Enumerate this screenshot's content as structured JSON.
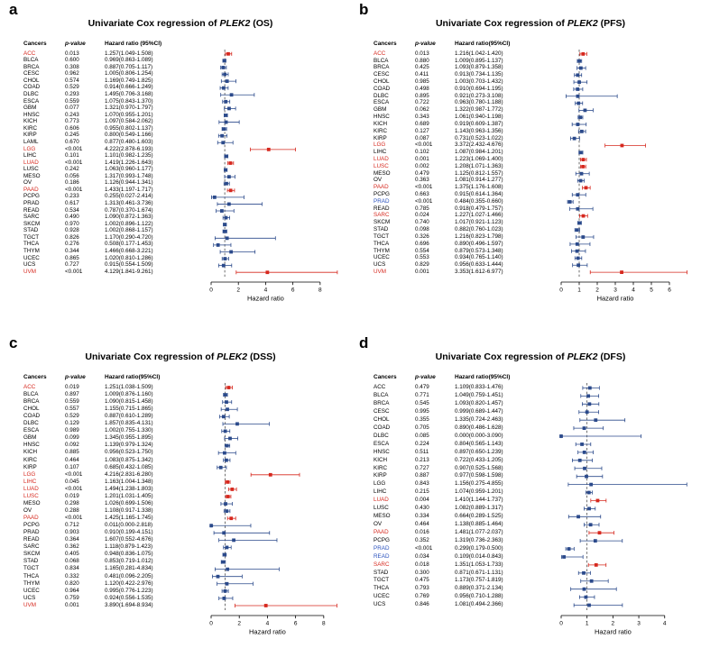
{
  "labels": {
    "cancers_header": "Cancers",
    "pvalue_header": "p-value",
    "axis_label": "Hazard ratio"
  },
  "colors": {
    "red": "#d6281e",
    "navy": "#2b4a8b",
    "blue": "#2a52be",
    "reference_line": "#333333",
    "axis": "#000000",
    "background": "#ffffff"
  },
  "chart_data": [
    {
      "type": "forest",
      "panel": "a",
      "title": {
        "prefix": "Univariate Cox regression of ",
        "gene": "PLEK2",
        "suffix": " (OS)"
      },
      "ci_header": "Hazard ratio (95%CI)",
      "xlabel": "Hazard ratio",
      "xlim": [
        0,
        9.4
      ],
      "xticks": [
        0,
        2,
        4,
        6,
        8
      ],
      "rows": [
        {
          "cancer": "ACC",
          "p": "0.013",
          "ci": "1.257(1.049-1.508)",
          "label_color": "red"
        },
        {
          "cancer": "BLCA",
          "p": "0.600",
          "ci": "0.969(0.863-1.089)"
        },
        {
          "cancer": "BRCA",
          "p": "0.308",
          "ci": "0.887(0.705-1.117)"
        },
        {
          "cancer": "CESC",
          "p": "0.962",
          "ci": "1.005(0.806-1.254)"
        },
        {
          "cancer": "CHOL",
          "p": "0.574",
          "ci": "1.169(0.749-1.825)"
        },
        {
          "cancer": "COAD",
          "p": "0.529",
          "ci": "0.914(0.666-1.249)"
        },
        {
          "cancer": "DLBC",
          "p": "0.293",
          "ci": "1.495(0.706-3.168)"
        },
        {
          "cancer": "ESCA",
          "p": "0.559",
          "ci": "1.075(0.843-1.370)"
        },
        {
          "cancer": "GBM",
          "p": "0.077",
          "ci": "1.321(0.970-1.797)"
        },
        {
          "cancer": "HNSC",
          "p": "0.243",
          "ci": "1.070(0.955-1.201)"
        },
        {
          "cancer": "KICH",
          "p": "0.773",
          "ci": "1.097(0.584-2.062)"
        },
        {
          "cancer": "KIRC",
          "p": "0.606",
          "ci": "0.955(0.802-1.137)"
        },
        {
          "cancer": "KIRP",
          "p": "0.245",
          "ci": "0.800(0.549-1.166)"
        },
        {
          "cancer": "LAML",
          "p": "0.670",
          "ci": "0.877(0.480-1.603)"
        },
        {
          "cancer": "LGG",
          "p": "<0.001",
          "ci": "4.222(2.878-6.193)",
          "label_color": "red"
        },
        {
          "cancer": "LIHC",
          "p": "0.101",
          "ci": "1.101(0.982-1.235)"
        },
        {
          "cancer": "LUAD",
          "p": "<0.001",
          "ci": "1.419(1.226-1.643)",
          "label_color": "red"
        },
        {
          "cancer": "LUSC",
          "p": "0.242",
          "ci": "1.063(0.960-1.177)"
        },
        {
          "cancer": "MESO",
          "p": "0.056",
          "ci": "1.317(0.993-1.748)"
        },
        {
          "cancer": "OV",
          "p": "0.186",
          "ci": "1.126(0.944-1.341)"
        },
        {
          "cancer": "PAAD",
          "p": "<0.001",
          "ci": "1.433(1.197-1.717)",
          "label_color": "red"
        },
        {
          "cancer": "PCPG",
          "p": "0.233",
          "ci": "0.255(0.027-2.414)"
        },
        {
          "cancer": "PRAD",
          "p": "0.617",
          "ci": "1.313(0.461-3.736)"
        },
        {
          "cancer": "READ",
          "p": "0.534",
          "ci": "0.787(0.370-1.674)"
        },
        {
          "cancer": "SARC",
          "p": "0.490",
          "ci": "1.090(0.872-1.363)"
        },
        {
          "cancer": "SKCM",
          "p": "0.970",
          "ci": "1.002(0.896-1.122)"
        },
        {
          "cancer": "STAD",
          "p": "0.928",
          "ci": "1.002(0.868-1.157)"
        },
        {
          "cancer": "TGCT",
          "p": "0.826",
          "ci": "1.170(0.290-4.720)"
        },
        {
          "cancer": "THCA",
          "p": "0.276",
          "ci": "0.508(0.177-1.453)"
        },
        {
          "cancer": "THYM",
          "p": "0.344",
          "ci": "1.466(0.668-3.221)"
        },
        {
          "cancer": "UCEC",
          "p": "0.865",
          "ci": "1.020(0.810-1.286)"
        },
        {
          "cancer": "UCS",
          "p": "0.727",
          "ci": "0.915(0.554-1.509)"
        },
        {
          "cancer": "UVM",
          "p": "<0.001",
          "ci": "4.129(1.841-9.261)",
          "label_color": "red"
        }
      ]
    },
    {
      "type": "forest",
      "panel": "b",
      "title": {
        "prefix": "Univariate Cox regression of ",
        "gene": "PLEK2",
        "suffix": " (PFS)"
      },
      "ci_header": "Hazard ratio(95%CI)",
      "xlabel": "Hazard ratio",
      "xlim": [
        0,
        7.1
      ],
      "xticks": [
        0,
        1,
        2,
        3,
        4,
        5,
        6
      ],
      "rows": [
        {
          "cancer": "ACC",
          "p": "0.013",
          "ci": "1.216(1.042-1.420)",
          "label_color": "red"
        },
        {
          "cancer": "BLCA",
          "p": "0.880",
          "ci": "1.009(0.895-1.137)"
        },
        {
          "cancer": "BRCA",
          "p": "0.425",
          "ci": "1.093(0.879-1.358)"
        },
        {
          "cancer": "CESC",
          "p": "0.411",
          "ci": "0.913(0.734-1.135)"
        },
        {
          "cancer": "CHOL",
          "p": "0.985",
          "ci": "1.003(0.703-1.432)"
        },
        {
          "cancer": "COAD",
          "p": "0.498",
          "ci": "0.910(0.694-1.195)"
        },
        {
          "cancer": "DLBC",
          "p": "0.895",
          "ci": "0.921(0.273-3.108)"
        },
        {
          "cancer": "ESCA",
          "p": "0.722",
          "ci": "0.963(0.780-1.188)"
        },
        {
          "cancer": "GBM",
          "p": "0.062",
          "ci": "1.322(0.987-1.772)"
        },
        {
          "cancer": "HNSC",
          "p": "0.343",
          "ci": "1.061(0.940-1.198)"
        },
        {
          "cancer": "KICH",
          "p": "0.689",
          "ci": "0.919(0.609-1.387)"
        },
        {
          "cancer": "KIRC",
          "p": "0.127",
          "ci": "1.143(0.963-1.356)"
        },
        {
          "cancer": "KIRP",
          "p": "0.087",
          "ci": "0.731(0.523-1.022)"
        },
        {
          "cancer": "LGG",
          "p": "<0.001",
          "ci": "3.372(2.432-4.676)",
          "label_color": "red"
        },
        {
          "cancer": "LIHC",
          "p": "0.102",
          "ci": "1.087(0.984-1.201)"
        },
        {
          "cancer": "LUAD",
          "p": "0.001",
          "ci": "1.223(1.069-1.400)",
          "label_color": "red"
        },
        {
          "cancer": "LUSC",
          "p": "0.002",
          "ci": "1.208(1.071-1.363)",
          "label_color": "red"
        },
        {
          "cancer": "MESO",
          "p": "0.479",
          "ci": "1.125(0.812-1.557)"
        },
        {
          "cancer": "OV",
          "p": "0.363",
          "ci": "1.081(0.914-1.277)"
        },
        {
          "cancer": "PAAD",
          "p": "<0.001",
          "ci": "1.375(1.176-1.608)",
          "label_color": "red"
        },
        {
          "cancer": "PCPG",
          "p": "0.663",
          "ci": "0.915(0.614-1.364)"
        },
        {
          "cancer": "PRAD",
          "p": "<0.001",
          "ci": "0.484(0.355-0.660)",
          "label_color": "blue"
        },
        {
          "cancer": "READ",
          "p": "0.785",
          "ci": "0.918(0.479-1.757)"
        },
        {
          "cancer": "SARC",
          "p": "0.024",
          "ci": "1.227(1.027-1.466)",
          "label_color": "red"
        },
        {
          "cancer": "SKCM",
          "p": "0.740",
          "ci": "1.017(0.921-1.123)"
        },
        {
          "cancer": "STAD",
          "p": "0.098",
          "ci": "0.882(0.760-1.023)"
        },
        {
          "cancer": "TGCT",
          "p": "0.326",
          "ci": "1.216(0.823-1.798)"
        },
        {
          "cancer": "THCA",
          "p": "0.696",
          "ci": "0.890(0.496-1.597)"
        },
        {
          "cancer": "THYM",
          "p": "0.554",
          "ci": "0.879(0.573-1.348)"
        },
        {
          "cancer": "UCEC",
          "p": "0.553",
          "ci": "0.934(0.765-1.140)"
        },
        {
          "cancer": "UCS",
          "p": "0.829",
          "ci": "0.956(0.633-1.444)"
        },
        {
          "cancer": "UVM",
          "p": "0.001",
          "ci": "3.353(1.612-6.977)",
          "label_color": "red"
        }
      ]
    },
    {
      "type": "forest",
      "panel": "c",
      "title": {
        "prefix": "Univariate Cox regression of ",
        "gene": "PLEK2",
        "suffix": " (DSS)"
      },
      "ci_header": "Hazard ratio(95%CI)",
      "xlabel": "Hazard ratio",
      "xlim": [
        0,
        9.1
      ],
      "xticks": [
        0,
        2,
        4,
        6,
        8
      ],
      "rows": [
        {
          "cancer": "ACC",
          "p": "0.019",
          "ci": "1.251(1.038-1.509)",
          "label_color": "red"
        },
        {
          "cancer": "BLCA",
          "p": "0.897",
          "ci": "1.009(0.876-1.160)"
        },
        {
          "cancer": "BRCA",
          "p": "0.559",
          "ci": "1.090(0.815-1.458)"
        },
        {
          "cancer": "CHOL",
          "p": "0.557",
          "ci": "1.155(0.715-1.865)"
        },
        {
          "cancer": "COAD",
          "p": "0.529",
          "ci": "0.887(0.610-1.289)"
        },
        {
          "cancer": "DLBC",
          "p": "0.129",
          "ci": "1.857(0.835-4.131)"
        },
        {
          "cancer": "ESCA",
          "p": "0.989",
          "ci": "1.002(0.755-1.330)"
        },
        {
          "cancer": "GBM",
          "p": "0.099",
          "ci": "1.345(0.955-1.895)"
        },
        {
          "cancer": "HNSC",
          "p": "0.092",
          "ci": "1.139(0.979-1.324)"
        },
        {
          "cancer": "KICH",
          "p": "0.885",
          "ci": "0.956(0.523-1.750)"
        },
        {
          "cancer": "KIRC",
          "p": "0.464",
          "ci": "1.083(0.875-1.342)"
        },
        {
          "cancer": "KIRP",
          "p": "0.107",
          "ci": "0.685(0.432-1.085)"
        },
        {
          "cancer": "LGG",
          "p": "<0.001",
          "ci": "4.216(2.831-6.280)",
          "label_color": "red"
        },
        {
          "cancer": "LIHC",
          "p": "0.045",
          "ci": "1.163(1.004-1.348)",
          "label_color": "red"
        },
        {
          "cancer": "LUAD",
          "p": "<0.001",
          "ci": "1.494(1.238-1.803)",
          "label_color": "red"
        },
        {
          "cancer": "LUSC",
          "p": "0.019",
          "ci": "1.201(1.031-1.405)",
          "label_color": "red"
        },
        {
          "cancer": "MESO",
          "p": "0.298",
          "ci": "1.026(0.699-1.506)"
        },
        {
          "cancer": "OV",
          "p": "0.288",
          "ci": "1.108(0.917-1.338)"
        },
        {
          "cancer": "PAAD",
          "p": "<0.001",
          "ci": "1.425(1.165-1.745)",
          "label_color": "red"
        },
        {
          "cancer": "PCPG",
          "p": "0.712",
          "ci": "0.011(0.000-2.818)"
        },
        {
          "cancer": "PRAD",
          "p": "0.903",
          "ci": "0.910(0.199-4.151)"
        },
        {
          "cancer": "READ",
          "p": "0.364",
          "ci": "1.607(0.552-4.676)"
        },
        {
          "cancer": "SARC",
          "p": "0.362",
          "ci": "1.118(0.879-1.423)"
        },
        {
          "cancer": "SKCM",
          "p": "0.405",
          "ci": "0.948(0.836-1.075)"
        },
        {
          "cancer": "STAD",
          "p": "0.068",
          "ci": "0.853(0.719-1.012)"
        },
        {
          "cancer": "TGCT",
          "p": "0.834",
          "ci": "1.165(0.281-4.834)"
        },
        {
          "cancer": "THCA",
          "p": "0.332",
          "ci": "0.481(0.096-2.205)"
        },
        {
          "cancer": "THYM",
          "p": "0.820",
          "ci": "1.120(0.422-2.976)"
        },
        {
          "cancer": "UCEC",
          "p": "0.964",
          "ci": "0.995(0.776-1.223)"
        },
        {
          "cancer": "UCS",
          "p": "0.759",
          "ci": "0.924(0.556-1.535)"
        },
        {
          "cancer": "UVM",
          "p": "0.001",
          "ci": "3.890(1.694-8.934)",
          "label_color": "red"
        }
      ]
    },
    {
      "type": "forest",
      "panel": "d",
      "title": {
        "prefix": "Univariate Cox regression of ",
        "gene": "PLEK2",
        "suffix": " (DFS)"
      },
      "ci_header": "Hazard ratio(95%CI)",
      "xlabel": "Hazard ratio",
      "xlim": [
        0,
        4.95
      ],
      "xticks": [
        0,
        1,
        2,
        3,
        4
      ],
      "rows": [
        {
          "cancer": "ACC",
          "p": "0.479",
          "ci": "1.109(0.833-1.476)"
        },
        {
          "cancer": "BLCA",
          "p": "0.771",
          "ci": "1.049(0.759-1.451)"
        },
        {
          "cancer": "BRCA",
          "p": "0.545",
          "ci": "1.093(0.820-1.457)"
        },
        {
          "cancer": "CESC",
          "p": "0.995",
          "ci": "0.999(0.689-1.447)"
        },
        {
          "cancer": "CHOL",
          "p": "0.355",
          "ci": "1.335(0.724-2.463)"
        },
        {
          "cancer": "COAD",
          "p": "0.705",
          "ci": "0.890(0.486-1.628)"
        },
        {
          "cancer": "DLBC",
          "p": "0.085",
          "ci": "0.000(0.000-3.090)"
        },
        {
          "cancer": "ESCA",
          "p": "0.224",
          "ci": "0.804(0.565-1.143)"
        },
        {
          "cancer": "HNSC",
          "p": "0.511",
          "ci": "0.897(0.650-1.239)"
        },
        {
          "cancer": "KICH",
          "p": "0.213",
          "ci": "0.722(0.433-1.205)"
        },
        {
          "cancer": "KIRC",
          "p": "0.727",
          "ci": "0.907(0.525-1.568)"
        },
        {
          "cancer": "KIRP",
          "p": "0.887",
          "ci": "0.977(0.598-1.598)"
        },
        {
          "cancer": "LGG",
          "p": "0.843",
          "ci": "1.156(0.275-4.855)"
        },
        {
          "cancer": "LIHC",
          "p": "0.215",
          "ci": "1.074(0.959-1.201)"
        },
        {
          "cancer": "LUAD",
          "p": "0.004",
          "ci": "1.410(1.144-1.737)",
          "label_color": "red"
        },
        {
          "cancer": "LUSC",
          "p": "0.430",
          "ci": "1.082(0.889-1.317)"
        },
        {
          "cancer": "MESO",
          "p": "0.334",
          "ci": "0.664(0.289-1.525)"
        },
        {
          "cancer": "OV",
          "p": "0.464",
          "ci": "1.138(0.885-1.464)"
        },
        {
          "cancer": "PAAD",
          "p": "0.016",
          "ci": "1.481(1.077-2.037)",
          "label_color": "red"
        },
        {
          "cancer": "PCPG",
          "p": "0.352",
          "ci": "1.319(0.736-2.363)"
        },
        {
          "cancer": "PRAD",
          "p": "<0.001",
          "ci": "0.299(0.179-0.500)",
          "label_color": "blue"
        },
        {
          "cancer": "READ",
          "p": "0.034",
          "ci": "0.109(0.014-0.843)",
          "label_color": "blue"
        },
        {
          "cancer": "SARC",
          "p": "0.018",
          "ci": "1.351(1.053-1.733)",
          "label_color": "red"
        },
        {
          "cancer": "STAD",
          "p": "0.300",
          "ci": "0.871(0.671-1.131)"
        },
        {
          "cancer": "TGCT",
          "p": "0.475",
          "ci": "1.173(0.757-1.819)"
        },
        {
          "cancer": "THCA",
          "p": "0.793",
          "ci": "0.889(0.371-2.134)"
        },
        {
          "cancer": "UCEC",
          "p": "0.769",
          "ci": "0.956(0.710-1.288)"
        },
        {
          "cancer": "UCS",
          "p": "0.846",
          "ci": "1.081(0.494-2.366)"
        }
      ]
    }
  ]
}
